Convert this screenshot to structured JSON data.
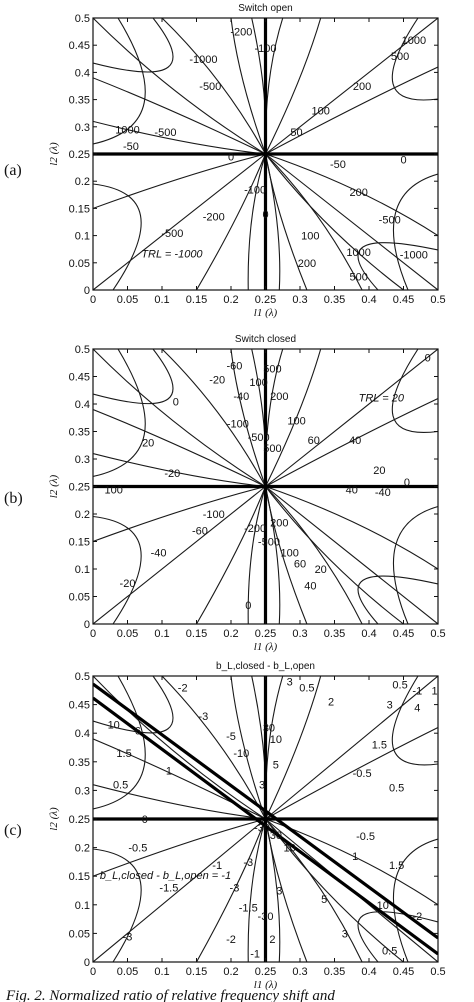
{
  "panel_tags": [
    "(a)",
    "(b)",
    "(c)"
  ],
  "caption": "Fig. 2. Normalized ratio of relative frequency shift and",
  "chart_data": [
    {
      "type": "contour",
      "title": "Switch open",
      "xlabel": "l1 (λ)",
      "ylabel": "l2 (λ)",
      "xlim": [
        0,
        0.5
      ],
      "ylim": [
        0,
        0.5
      ],
      "x_ticks": [
        "0",
        "0.05",
        "0.1",
        "0.15",
        "0.2",
        "0.25",
        "0.3",
        "0.35",
        "0.4",
        "0.45",
        "0.5"
      ],
      "y_ticks": [
        "0",
        "0.05",
        "0.1",
        "0.15",
        "0.2",
        "0.25",
        "0.3",
        "0.35",
        "0.4",
        "0.45",
        "0.5"
      ],
      "singular_point": [
        0.25,
        0.25
      ],
      "contour_labels": [
        {
          "text": "-200",
          "x": 0.215,
          "y": 0.475
        },
        {
          "text": "-100",
          "x": 0.25,
          "y": 0.445
        },
        {
          "text": "1000",
          "x": 0.465,
          "y": 0.46
        },
        {
          "text": "-1000",
          "x": 0.16,
          "y": 0.425
        },
        {
          "text": "500",
          "x": 0.445,
          "y": 0.43
        },
        {
          "text": "-500",
          "x": 0.17,
          "y": 0.375
        },
        {
          "text": "200",
          "x": 0.39,
          "y": 0.375
        },
        {
          "text": "100",
          "x": 0.33,
          "y": 0.33
        },
        {
          "text": "1000",
          "x": 0.05,
          "y": 0.295
        },
        {
          "text": "-500",
          "x": 0.105,
          "y": 0.29
        },
        {
          "text": "50",
          "x": 0.295,
          "y": 0.29
        },
        {
          "text": "-50",
          "x": 0.055,
          "y": 0.265
        },
        {
          "text": "0",
          "x": 0.2,
          "y": 0.245
        },
        {
          "text": "-50",
          "x": 0.355,
          "y": 0.232
        },
        {
          "text": "0",
          "x": 0.45,
          "y": 0.24
        },
        {
          "text": "-100",
          "x": 0.235,
          "y": 0.185
        },
        {
          "text": "-200",
          "x": 0.175,
          "y": 0.135
        },
        {
          "text": "200",
          "x": 0.385,
          "y": 0.18
        },
        {
          "text": "0",
          "x": 0.25,
          "y": 0.14
        },
        {
          "text": "-500",
          "x": 0.43,
          "y": 0.13
        },
        {
          "text": "-500",
          "x": 0.115,
          "y": 0.105
        },
        {
          "text": "100",
          "x": 0.315,
          "y": 0.1
        },
        {
          "text": "1000",
          "x": 0.385,
          "y": 0.07
        },
        {
          "text": "200",
          "x": 0.31,
          "y": 0.05
        },
        {
          "text": "-1000",
          "x": 0.465,
          "y": 0.065
        },
        {
          "text": "500",
          "x": 0.385,
          "y": 0.025
        }
      ],
      "annotation": {
        "text": "TRL = -1000",
        "x": 0.07,
        "y": 0.06
      }
    },
    {
      "type": "contour",
      "title": "Switch closed",
      "xlabel": "l1 (λ)",
      "ylabel": "l2 (λ)",
      "xlim": [
        0,
        0.5
      ],
      "ylim": [
        0,
        0.5
      ],
      "x_ticks": [
        "0",
        "0.05",
        "0.1",
        "0.15",
        "0.2",
        "0.25",
        "0.3",
        "0.35",
        "0.4",
        "0.45",
        "0.5"
      ],
      "y_ticks": [
        "0",
        "0.05",
        "0.1",
        "0.15",
        "0.2",
        "0.25",
        "0.3",
        "0.35",
        "0.4",
        "0.45",
        "0.5"
      ],
      "singular_point": [
        0.25,
        0.25
      ],
      "contour_labels": [
        {
          "text": "0",
          "x": 0.485,
          "y": 0.485
        },
        {
          "text": "-60",
          "x": 0.205,
          "y": 0.47
        },
        {
          "text": "500",
          "x": 0.26,
          "y": 0.465
        },
        {
          "text": "-20",
          "x": 0.18,
          "y": 0.445
        },
        {
          "text": "100",
          "x": 0.24,
          "y": 0.44
        },
        {
          "text": "200",
          "x": 0.27,
          "y": 0.415
        },
        {
          "text": "-40",
          "x": 0.215,
          "y": 0.415
        },
        {
          "text": "0",
          "x": 0.12,
          "y": 0.405
        },
        {
          "text": "100",
          "x": 0.295,
          "y": 0.37
        },
        {
          "text": "-100",
          "x": 0.21,
          "y": 0.365
        },
        {
          "text": "-500",
          "x": 0.24,
          "y": 0.34
        },
        {
          "text": "40",
          "x": 0.38,
          "y": 0.335
        },
        {
          "text": "60",
          "x": 0.32,
          "y": 0.335
        },
        {
          "text": "20",
          "x": 0.08,
          "y": 0.33
        },
        {
          "text": "500",
          "x": 0.26,
          "y": 0.32
        },
        {
          "text": "20",
          "x": 0.415,
          "y": 0.28
        },
        {
          "text": "-20",
          "x": 0.115,
          "y": 0.275
        },
        {
          "text": "0",
          "x": 0.455,
          "y": 0.258
        },
        {
          "text": "100",
          "x": 0.03,
          "y": 0.245
        },
        {
          "text": "40",
          "x": 0.375,
          "y": 0.245
        },
        {
          "text": "-40",
          "x": 0.42,
          "y": 0.24
        },
        {
          "text": "-100",
          "x": 0.175,
          "y": 0.2
        },
        {
          "text": "200",
          "x": 0.27,
          "y": 0.185
        },
        {
          "text": "-200",
          "x": 0.235,
          "y": 0.175
        },
        {
          "text": "-60",
          "x": 0.155,
          "y": 0.17
        },
        {
          "text": "-500",
          "x": 0.255,
          "y": 0.15
        },
        {
          "text": "-40",
          "x": 0.095,
          "y": 0.13
        },
        {
          "text": "100",
          "x": 0.285,
          "y": 0.13
        },
        {
          "text": "60",
          "x": 0.3,
          "y": 0.11
        },
        {
          "text": "20",
          "x": 0.33,
          "y": 0.1
        },
        {
          "text": "-20",
          "x": 0.05,
          "y": 0.075
        },
        {
          "text": "40",
          "x": 0.315,
          "y": 0.07
        },
        {
          "text": "0",
          "x": 0.225,
          "y": 0.035
        }
      ],
      "annotation": {
        "text": "TRL = 20",
        "x": 0.385,
        "y": 0.405
      }
    },
    {
      "type": "contour",
      "title": "b_L,closed - b_L,open",
      "xlabel": "l1 (λ)",
      "ylabel": "l2 (λ)",
      "xlim": [
        0,
        0.5
      ],
      "ylim": [
        0,
        0.5
      ],
      "x_ticks": [
        "0",
        "0.05",
        "0.1",
        "0.15",
        "0.2",
        "0.25",
        "0.3",
        "0.35",
        "0.4",
        "0.45",
        "0.5"
      ],
      "y_ticks": [
        "0",
        "0.05",
        "0.1",
        "0.15",
        "0.2",
        "0.25",
        "0.3",
        "0.35",
        "0.4",
        "0.45",
        "0.5"
      ],
      "singular_point": [
        0.25,
        0.25
      ],
      "contour_labels": [
        {
          "text": "-2",
          "x": 0.13,
          "y": 0.48
        },
        {
          "text": "3",
          "x": 0.285,
          "y": 0.49
        },
        {
          "text": "0.5",
          "x": 0.31,
          "y": 0.48
        },
        {
          "text": "0.5",
          "x": 0.445,
          "y": 0.485
        },
        {
          "text": "-1",
          "x": 0.47,
          "y": 0.475
        },
        {
          "text": "1",
          "x": 0.495,
          "y": 0.475
        },
        {
          "text": "2",
          "x": 0.345,
          "y": 0.455
        },
        {
          "text": "3",
          "x": 0.43,
          "y": 0.45
        },
        {
          "text": "4",
          "x": 0.47,
          "y": 0.445
        },
        {
          "text": "-3",
          "x": 0.16,
          "y": 0.43
        },
        {
          "text": "10",
          "x": 0.03,
          "y": 0.415
        },
        {
          "text": "6",
          "x": 0.065,
          "y": 0.405
        },
        {
          "text": "-5",
          "x": 0.2,
          "y": 0.395
        },
        {
          "text": "30",
          "x": 0.255,
          "y": 0.41
        },
        {
          "text": "10",
          "x": 0.265,
          "y": 0.39
        },
        {
          "text": "1.5",
          "x": 0.415,
          "y": 0.38
        },
        {
          "text": "1.5",
          "x": 0.045,
          "y": 0.365
        },
        {
          "text": "-10",
          "x": 0.215,
          "y": 0.365
        },
        {
          "text": "5",
          "x": 0.265,
          "y": 0.345
        },
        {
          "text": "1",
          "x": 0.11,
          "y": 0.335
        },
        {
          "text": "-0.5",
          "x": 0.39,
          "y": 0.33
        },
        {
          "text": "0.5",
          "x": 0.04,
          "y": 0.31
        },
        {
          "text": "0.5",
          "x": 0.44,
          "y": 0.305
        },
        {
          "text": "3",
          "x": 0.245,
          "y": 0.31
        },
        {
          "text": "0",
          "x": 0.075,
          "y": 0.25
        },
        {
          "text": "-30",
          "x": 0.245,
          "y": 0.235
        },
        {
          "text": "30",
          "x": 0.265,
          "y": 0.222
        },
        {
          "text": "-0.5",
          "x": 0.395,
          "y": 0.22
        },
        {
          "text": "-0.5",
          "x": 0.065,
          "y": 0.2
        },
        {
          "text": "10",
          "x": 0.285,
          "y": 0.2
        },
        {
          "text": "1",
          "x": 0.38,
          "y": 0.185
        },
        {
          "text": "-1",
          "x": 0.18,
          "y": 0.17
        },
        {
          "text": "-3",
          "x": 0.225,
          "y": 0.175
        },
        {
          "text": "1.5",
          "x": 0.44,
          "y": 0.17
        },
        {
          "text": "-1.5",
          "x": 0.11,
          "y": 0.13
        },
        {
          "text": "-3",
          "x": 0.205,
          "y": 0.13
        },
        {
          "text": "3",
          "x": 0.27,
          "y": 0.125
        },
        {
          "text": "5",
          "x": 0.335,
          "y": 0.11
        },
        {
          "text": "-1.5",
          "x": 0.225,
          "y": 0.095
        },
        {
          "text": "10",
          "x": 0.42,
          "y": 0.1
        },
        {
          "text": "-30",
          "x": 0.25,
          "y": 0.08
        },
        {
          "text": "-2",
          "x": 0.47,
          "y": 0.08
        },
        {
          "text": "-3",
          "x": 0.05,
          "y": 0.045
        },
        {
          "text": "-2",
          "x": 0.2,
          "y": 0.04
        },
        {
          "text": "2",
          "x": 0.26,
          "y": 0.04
        },
        {
          "text": "3",
          "x": 0.365,
          "y": 0.05
        },
        {
          "text": "-1",
          "x": 0.235,
          "y": 0.015
        },
        {
          "text": "0.5",
          "x": 0.43,
          "y": 0.02
        }
      ],
      "annotation": {
        "text": "b_L,closed - b_L,open = -1",
        "x": 0.01,
        "y": 0.145
      }
    }
  ]
}
